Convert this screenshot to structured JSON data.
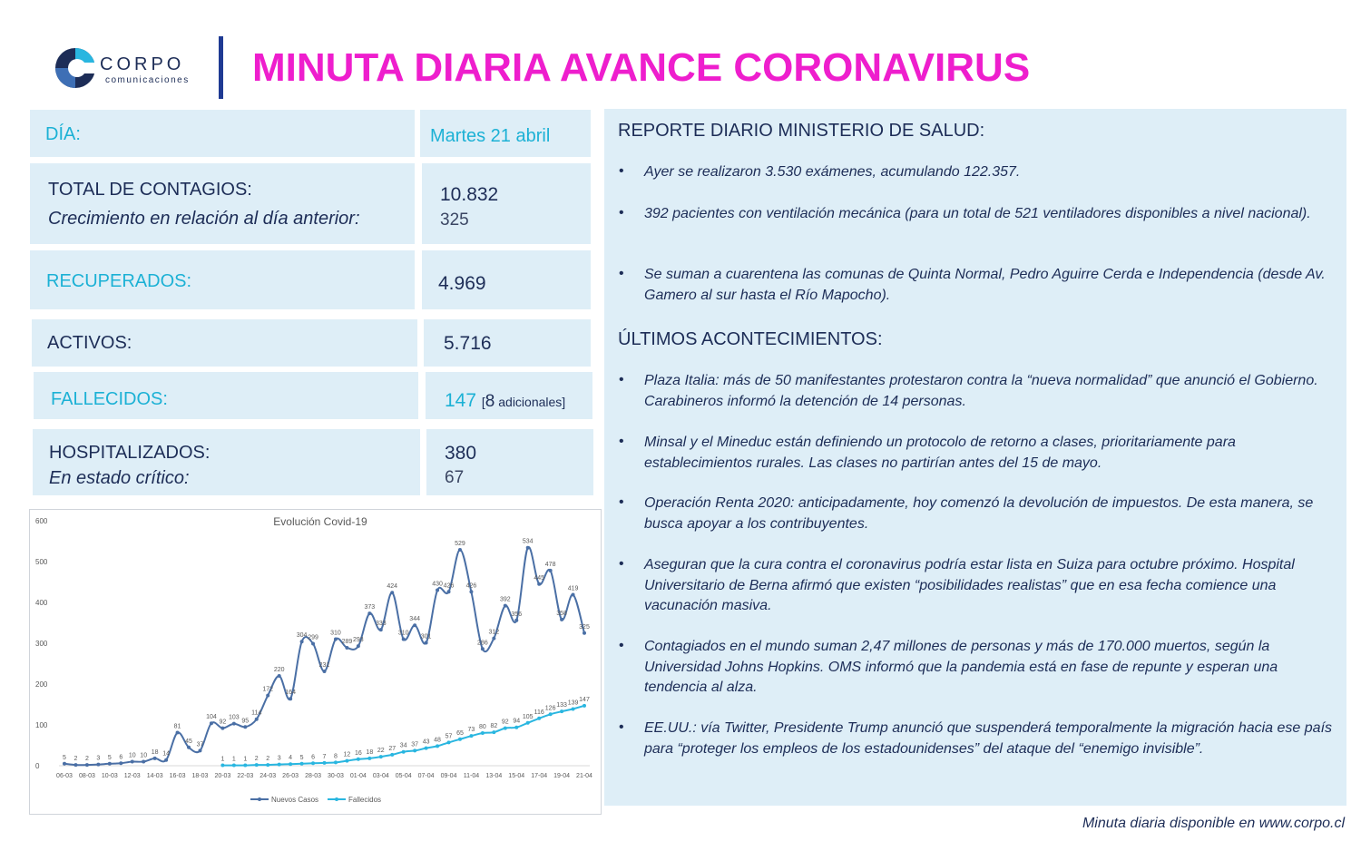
{
  "header": {
    "logo_word": "CORPO",
    "logo_sub": "comunicaciones",
    "title": "MINUTA DIARIA AVANCE CORONAVIRUS"
  },
  "stats": {
    "dia_label": "DÍA:",
    "dia_value": "Martes 21 abril",
    "contagios_label": "TOTAL DE CONTAGIOS:",
    "contagios_sub": "Crecimiento en relación al día anterior:",
    "contagios_value": "10.832",
    "contagios_growth": "325",
    "recuperados_label": "RECUPERADOS:",
    "recuperados_value": "4.969",
    "activos_label": "ACTIVOS:",
    "activos_value": "5.716",
    "fallecidos_label": "FALLECIDOS:",
    "fallecidos_value": "147",
    "fallecidos_extra_open": "[",
    "fallecidos_extra_num": "8",
    "fallecidos_extra_text": " adicionales]",
    "hospitalizados_label": "HOSPITALIZADOS:",
    "hospitalizados_sub": "En estado crítico:",
    "hospitalizados_value": "380",
    "hospitalizados_critico": "67"
  },
  "colors": {
    "title": "#ee1ecd",
    "card_bg": "#deeef7",
    "navy": "#1d2d57",
    "cyan": "#1cb1d5",
    "series_nuevos": "#4a6fa5",
    "series_fallecidos": "#29b6e0"
  },
  "chart_data": {
    "type": "line",
    "title": "Evolución Covid-19",
    "ylim": [
      0,
      600
    ],
    "yticks": [
      0,
      100,
      200,
      300,
      400,
      500,
      600
    ],
    "x_tick_labels": [
      "06-03",
      "08-03",
      "10-03",
      "12-03",
      "14-03",
      "16-03",
      "18-03",
      "20-03",
      "22-03",
      "24-03",
      "26-03",
      "28-03",
      "30-03",
      "01-04",
      "03-04",
      "05-04",
      "07-04",
      "09-04",
      "11-04",
      "13-04",
      "15-04",
      "17-04",
      "19-04",
      "21-04"
    ],
    "legend": "bottom",
    "series": [
      {
        "name": "Nuevos Casos",
        "color": "#4a6fa5",
        "values": [
          5,
          2,
          2,
          3,
          5,
          6,
          10,
          10,
          18,
          14,
          81,
          45,
          37,
          104,
          92,
          103,
          95,
          114,
          172,
          220,
          164,
          304,
          299,
          231,
          310,
          289,
          293,
          373,
          333,
          424,
          310,
          344,
          301,
          430,
          426,
          529,
          426,
          286,
          312,
          392,
          356,
          534,
          445,
          478,
          358,
          419,
          325
        ]
      },
      {
        "name": "Fallecidos",
        "color": "#29b6e0",
        "values": [
          1,
          1,
          1,
          2,
          2,
          3,
          4,
          5,
          6,
          7,
          8,
          12,
          16,
          18,
          22,
          27,
          34,
          37,
          43,
          48,
          57,
          65,
          73,
          80,
          82,
          92,
          94,
          105,
          116,
          126,
          133,
          139,
          147
        ]
      }
    ]
  },
  "report": {
    "section1_title": "REPORTE DIARIO MINISTERIO DE SALUD:",
    "section1_items": [
      "Ayer se realizaron 3.530 exámenes, acumulando 122.357.",
      "392 pacientes con ventilación mecánica (para un total de 521 ventiladores disponibles a nivel nacional).",
      "Se suman a cuarentena las comunas de Quinta Normal, Pedro Aguirre Cerda e Independencia (desde Av. Gamero al sur hasta el Río Mapocho)."
    ],
    "section2_title": "ÚLTIMOS ACONTECIMIENTOS:",
    "section2_items": [
      "Plaza Italia: más de 50 manifestantes protestaron contra la “nueva normalidad” que anunció el Gobierno. Carabineros informó la detención de 14 personas.",
      "Minsal y el Mineduc están definiendo un protocolo de retorno a clases, prioritariamente para establecimientos rurales. Las clases no partirían antes del 15 de mayo.",
      "Operación Renta 2020: anticipadamente, hoy comenzó la devolución de impuestos. De esta manera, se busca apoyar a los contribuyentes.",
      "Aseguran que la cura contra el coronavirus podría estar lista en Suiza para octubre próximo. Hospital Universitario de Berna afirmó que existen “posibilidades realistas” que en esa fecha comience una vacunación masiva.",
      "Contagiados en el mundo suman 2,47 millones de personas y más de 170.000 muertos, según la Universidad Johns Hopkins. OMS informó que la pandemia está en fase de repunte y esperan una tendencia al alza.",
      "EE.UU.: vía Twitter, Presidente Trump anunció que suspenderá temporalmente la migración hacia ese país para “proteger los empleos de los estadounidenses” del ataque del “enemigo invisible”."
    ],
    "bullet": "•"
  },
  "footer": "Minuta diaria disponible en www.corpo.cl"
}
